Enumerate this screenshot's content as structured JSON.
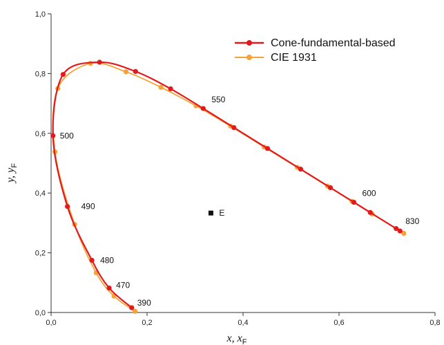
{
  "chart_data": {
    "type": "scatter",
    "xlabel": {
      "main": "x, x",
      "sub": "F"
    },
    "ylabel": {
      "main": "y, y",
      "sub": "F"
    },
    "xlim": [
      0,
      0.8
    ],
    "ylim": [
      0,
      1.0
    ],
    "x_ticks": [
      "0,0",
      "0,2",
      "0,4",
      "0,6",
      "0,8"
    ],
    "y_ticks": [
      "0,0",
      "0,2",
      "0,4",
      "0,6",
      "0,8",
      "1,0"
    ],
    "grid": false,
    "legend_position": "top-right",
    "series": [
      {
        "name": "Cone-fundamental-based",
        "color": "#e31a1c",
        "points": [
          [
            0.168,
            0.016
          ],
          [
            0.121,
            0.082
          ],
          [
            0.085,
            0.175
          ],
          [
            0.034,
            0.355
          ],
          [
            0.004,
            0.592
          ],
          [
            0.025,
            0.797
          ],
          [
            0.101,
            0.838
          ],
          [
            0.176,
            0.807
          ],
          [
            0.249,
            0.749
          ],
          [
            0.317,
            0.683
          ],
          [
            0.381,
            0.619
          ],
          [
            0.451,
            0.549
          ],
          [
            0.52,
            0.48
          ],
          [
            0.582,
            0.418
          ],
          [
            0.631,
            0.369
          ],
          [
            0.665,
            0.335
          ],
          [
            0.719,
            0.281
          ],
          [
            0.727,
            0.273
          ]
        ]
      },
      {
        "name": "CIE 1931",
        "color": "#f5a236",
        "points": [
          [
            0.175,
            0.004
          ],
          [
            0.131,
            0.055
          ],
          [
            0.094,
            0.133
          ],
          [
            0.049,
            0.295
          ],
          [
            0.008,
            0.538
          ],
          [
            0.014,
            0.75
          ],
          [
            0.082,
            0.834
          ],
          [
            0.156,
            0.806
          ],
          [
            0.229,
            0.754
          ],
          [
            0.302,
            0.692
          ],
          [
            0.374,
            0.624
          ],
          [
            0.444,
            0.554
          ],
          [
            0.513,
            0.486
          ],
          [
            0.576,
            0.423
          ],
          [
            0.627,
            0.372
          ],
          [
            0.669,
            0.33
          ],
          [
            0.735,
            0.265
          ]
        ]
      }
    ],
    "annotations": [
      {
        "text": "390",
        "x": 0.168,
        "y": 0.016
      },
      {
        "text": "470",
        "x": 0.121,
        "y": 0.082
      },
      {
        "text": "480",
        "x": 0.085,
        "y": 0.175
      },
      {
        "text": "490",
        "x": 0.034,
        "y": 0.355
      },
      {
        "text": "500",
        "x": 0.004,
        "y": 0.592
      },
      {
        "text": "550",
        "x": 0.317,
        "y": 0.683
      },
      {
        "text": "600",
        "x": 0.631,
        "y": 0.369
      },
      {
        "text": "830",
        "x": 0.727,
        "y": 0.273
      }
    ],
    "marker_e": {
      "text": "E",
      "x": 0.333,
      "y": 0.333
    }
  }
}
